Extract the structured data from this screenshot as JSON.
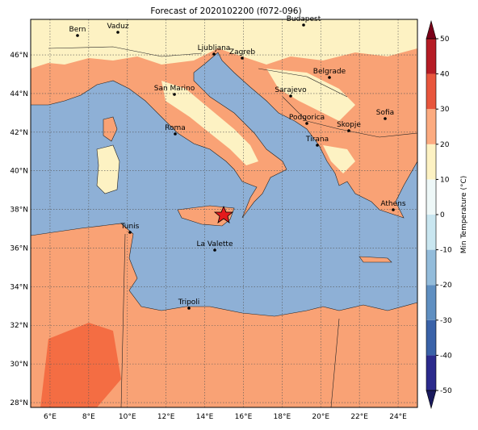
{
  "title": "Forecast of 2020102200 (f072-096)",
  "map": {
    "lonlim": [
      5,
      25
    ],
    "latlim": [
      27.75,
      47.84
    ],
    "xticks": [
      {
        "value": 6,
        "label": "6°E"
      },
      {
        "value": 8,
        "label": "8°E"
      },
      {
        "value": 10,
        "label": "10°E"
      },
      {
        "value": 12,
        "label": "12°E"
      },
      {
        "value": 14,
        "label": "14°E"
      },
      {
        "value": 16,
        "label": "16°E"
      },
      {
        "value": 18,
        "label": "18°E"
      },
      {
        "value": 20,
        "label": "20°E"
      },
      {
        "value": 22,
        "label": "22°E"
      },
      {
        "value": 24,
        "label": "24°E"
      }
    ],
    "yticks": [
      {
        "value": 28,
        "label": "28°N"
      },
      {
        "value": 30,
        "label": "30°N"
      },
      {
        "value": 32,
        "label": "32°N"
      },
      {
        "value": 34,
        "label": "34°N"
      },
      {
        "value": 36,
        "label": "36°N"
      },
      {
        "value": 38,
        "label": "38°N"
      },
      {
        "value": 40,
        "label": "40°N"
      },
      {
        "value": 42,
        "label": "42°N"
      },
      {
        "value": 44,
        "label": "44°N"
      },
      {
        "value": 46,
        "label": "46°N"
      }
    ],
    "grid": true,
    "cities": [
      "Bern",
      "Vaduz",
      "Budapest",
      "Ljubljana",
      "Zagreb",
      "Belgrade",
      "Sarajevo",
      "San Marino",
      "Podgorica",
      "Skopje",
      "Sofia",
      "Roma",
      "Tirana",
      "Athens",
      "Tunis",
      "La Valette",
      "Tripoli"
    ]
  },
  "colorbar": {
    "label": "Min Temperature (°C)",
    "lim": [
      -50,
      50
    ],
    "ticks": [
      -50,
      -40,
      -30,
      -20,
      -10,
      0,
      10,
      20,
      30,
      40,
      50
    ],
    "colors": [
      "#2b2a8c",
      "#3a62a8",
      "#5f8fc1",
      "#93bcdb",
      "#c9e6f0",
      "#eef8f8",
      "#fdf2c3",
      "#fcab80",
      "#e8563d",
      "#b51c25"
    ],
    "under": "#1a1a5e",
    "over": "#7a0019"
  }
}
